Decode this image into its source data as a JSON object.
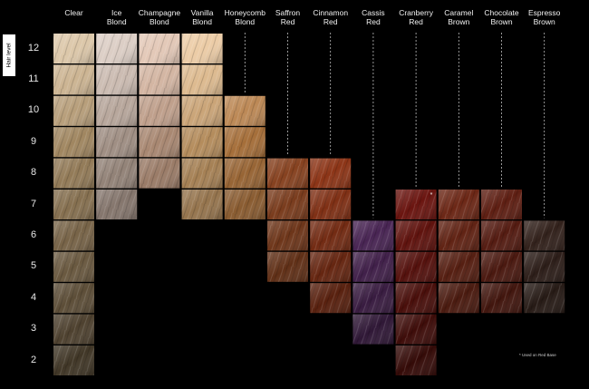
{
  "axis_label": "Hair level",
  "footnote": "* Used on Red Base",
  "levels": [
    "12",
    "11",
    "10",
    "9",
    "8",
    "7",
    "6",
    "5",
    "4",
    "3",
    "2"
  ],
  "columns": [
    {
      "line1": "Clear",
      "line2": "",
      "levels": [
        12,
        11,
        10,
        9,
        8,
        7,
        6,
        5,
        4,
        3,
        2
      ],
      "color": "#c9a878"
    },
    {
      "line1": "Ice",
      "line2": "Blond",
      "levels": [
        12,
        11,
        10,
        9,
        8,
        7
      ],
      "color": "#c8b2a4"
    },
    {
      "line1": "Champagne",
      "line2": "Blond",
      "levels": [
        12,
        11,
        10,
        9,
        8
      ],
      "color": "#d3a98e"
    },
    {
      "line1": "Vanilla",
      "line2": "Blond",
      "levels": [
        12,
        11,
        10,
        9,
        8,
        7
      ],
      "color": "#e2b074"
    },
    {
      "line1": "Honeycomb",
      "line2": "Blond",
      "levels": [
        10,
        9,
        8,
        7
      ],
      "color": "#cf8a48"
    },
    {
      "line1": "Saffron",
      "line2": "Red",
      "levels": [
        8,
        7,
        6,
        5
      ],
      "color": "#b8592a"
    },
    {
      "line1": "Cinnamon",
      "line2": "Red",
      "levels": [
        8,
        7,
        6,
        5,
        4
      ],
      "color": "#c0471e"
    },
    {
      "line1": "Cassis",
      "line2": "Red",
      "levels": [
        6,
        5,
        4,
        3
      ],
      "color": "#7a3c8c"
    },
    {
      "line1": "Cranberry",
      "line2": "Red",
      "levels": [
        7,
        6,
        5,
        4,
        3,
        2
      ],
      "color": "#a11e16"
    },
    {
      "line1": "Caramel",
      "line2": "Brown",
      "levels": [
        7,
        6,
        5,
        4
      ],
      "color": "#a23a20"
    },
    {
      "line1": "Chocolate",
      "line2": "Brown",
      "levels": [
        7,
        6,
        5,
        4
      ],
      "color": "#8e2e1c"
    },
    {
      "line1": "Espresso",
      "line2": "Brown",
      "levels": [
        6,
        5,
        4
      ],
      "color": "#54382e"
    }
  ],
  "marked_swatch": {
    "column": 8,
    "level": 7,
    "symbol": "*"
  }
}
